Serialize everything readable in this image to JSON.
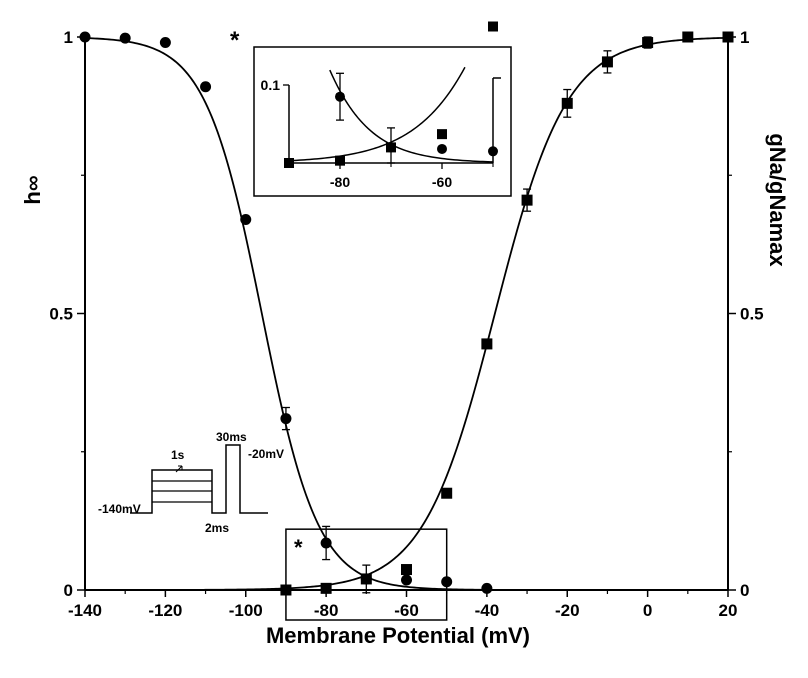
{
  "chart_data": {
    "type": "scatter",
    "title": "",
    "xlabel": "Membrane Potential (mV)",
    "ylabel_left": "h∞",
    "ylabel_right": "gNa/gNamax",
    "xlim": [
      -140,
      20
    ],
    "ylim": [
      0,
      1
    ],
    "x_ticks": [
      "-140",
      "-120",
      "-100",
      "-80",
      "-60",
      "-40",
      "-20",
      "0",
      "20"
    ],
    "y_ticks_left": [
      "0",
      "0.5",
      "1"
    ],
    "y_ticks_right": [
      "0",
      "0.5",
      "1"
    ],
    "grid": false,
    "legend": "none",
    "series": [
      {
        "marker": "circle",
        "points": [
          {
            "x": -140,
            "y": 1.0
          },
          {
            "x": -130,
            "y": 0.998
          },
          {
            "x": -120,
            "y": 0.99
          },
          {
            "x": -110,
            "y": 0.91
          },
          {
            "x": -100,
            "y": 0.67
          },
          {
            "x": -90,
            "y": 0.31,
            "err": 0.02
          },
          {
            "x": -80,
            "y": 0.085,
            "err": 0.03
          },
          {
            "x": -70,
            "y": 0.02,
            "err": 0.025
          },
          {
            "x": -60,
            "y": 0.018
          },
          {
            "x": -50,
            "y": 0.015
          },
          {
            "x": -40,
            "y": 0.003
          }
        ],
        "fit": {
          "type": "boltzmann_inactivation",
          "vhalf": -96,
          "k": 7.0
        }
      },
      {
        "marker": "square",
        "points": [
          {
            "x": -90,
            "y": 0.0
          },
          {
            "x": -80,
            "y": 0.003
          },
          {
            "x": -70,
            "y": 0.02
          },
          {
            "x": -60,
            "y": 0.037
          },
          {
            "x": -50,
            "y": 0.175
          },
          {
            "x": -40,
            "y": 0.445
          },
          {
            "x": -30,
            "y": 0.705,
            "err": 0.02
          },
          {
            "x": -20,
            "y": 0.88,
            "err": 0.025
          },
          {
            "x": -10,
            "y": 0.955,
            "err": 0.02
          },
          {
            "x": 0,
            "y": 0.99,
            "err": 0.01
          },
          {
            "x": 10,
            "y": 1.0
          },
          {
            "x": 20,
            "y": 1.0
          }
        ],
        "fit": {
          "type": "boltzmann_activation",
          "vhalf": -38,
          "k": 8.9
        }
      }
    ],
    "highlight_box": {
      "xlim": [
        -90,
        -50
      ],
      "ylim": [
        0,
        0.11
      ],
      "label": "*"
    },
    "inset": {
      "label": "*",
      "xlim": [
        -90,
        -50
      ],
      "ylim": [
        0,
        0.1
      ],
      "x_ticks": [
        "-80",
        "-60"
      ],
      "y_ticks": [
        "0.1"
      ]
    },
    "protocol_labels": {
      "hold": "-140mV",
      "prepulse": "1s",
      "gap": "2ms",
      "test_duration": "30ms",
      "test": "-20mV"
    }
  }
}
